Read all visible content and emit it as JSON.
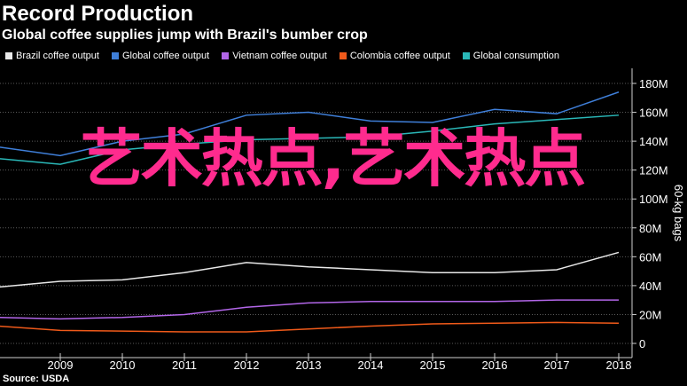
{
  "header": {
    "title": "Record Production",
    "subtitle": "Global coffee supplies jump with Brazil's bumber crop"
  },
  "source": "Source: USDA",
  "overlay_text": "艺术热点,艺术热点",
  "chart_data": {
    "type": "line",
    "x": [
      2008,
      2009,
      2010,
      2011,
      2012,
      2013,
      2014,
      2015,
      2016,
      2017,
      2018
    ],
    "xticks": [
      "2009",
      "2010",
      "2011",
      "2012",
      "2013",
      "2014",
      "2015",
      "2016",
      "2017",
      "2018"
    ],
    "ylabel": "60-kg bags",
    "yticks": [
      "0",
      "20M",
      "40M",
      "60M",
      "80M",
      "100M",
      "120M",
      "140M",
      "160M",
      "180M"
    ],
    "ylim": [
      0,
      190
    ],
    "y_units": "million 60-kg bags",
    "grid": "horizontal dashed",
    "legend_position": "top-left",
    "series": [
      {
        "name": "Brazil coffee output",
        "color": "#e8e8e8",
        "values": [
          39,
          43,
          44,
          49,
          56,
          53,
          51,
          49,
          49,
          51,
          63
        ]
      },
      {
        "name": "Global coffee output",
        "color": "#3f7fd9",
        "values": [
          136,
          130,
          140,
          145,
          158,
          160,
          154,
          153,
          162,
          159,
          174
        ]
      },
      {
        "name": "Vietnam coffee output",
        "color": "#b266e8",
        "values": [
          18,
          17,
          18,
          20,
          25,
          28,
          29,
          29,
          29,
          30,
          30
        ]
      },
      {
        "name": "Colombia coffee output",
        "color": "#f05a1a",
        "values": [
          12,
          9,
          8.5,
          8,
          8,
          10,
          12,
          13.5,
          14,
          14.5,
          14
        ]
      },
      {
        "name": "Global consumption",
        "color": "#2ab8b8",
        "values": [
          128,
          124,
          134,
          138,
          141,
          142,
          143,
          147,
          152,
          155,
          158
        ]
      }
    ]
  }
}
